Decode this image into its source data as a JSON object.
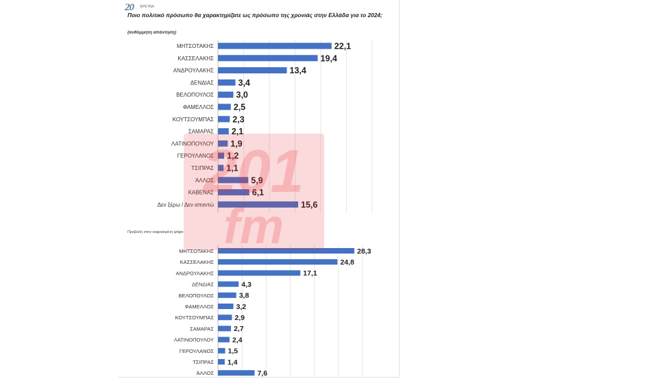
{
  "header": {
    "logo_text": "20",
    "logo_sub": "ΈΡΕΥΝΑ"
  },
  "question": "Ποιο πολιτικό πρόσωπο θα χαρακτηρίζατε ως πρόσωπο της χρονιάς στην Ελλάδα για το 2024;",
  "note": "(ανθόμμητη απάντηση)",
  "watermark": {
    "text_top": "201",
    "text_bottom": "fm",
    "color": "#e8323c"
  },
  "colors": {
    "bar": "#4472c4"
  },
  "chart_data": [
    {
      "type": "bar",
      "orientation": "horizontal",
      "title": "",
      "categories": [
        "ΜΗΤΣΟΤΑΚΗΣ",
        "ΚΑΣΣΕΛΑΚΗΣ",
        "ΑΝΔΡΟΥΛΑΚΗΣ",
        "ΔΕΝΔΙΑΣ",
        "ΒΕΛΟΠΟΥΛΟΣ",
        "ΦΑΜΕΛΛΟΣ",
        "ΚΟΥΤΣΟΥΜΠΑΣ",
        "ΣΑΜΑΡΑΣ",
        "ΛΑΤΙΝΟΠΟΥΛΟΥ",
        "ΓΕΡΟΥΛΑΝΟΣ",
        "ΤΣΙΠΡΑΣ",
        "ΆΛΛΟΣ",
        "ΚΑΒΕΝΑΣ",
        "Δεν ξέρω / Δεν απαντώ"
      ],
      "values": [
        22.1,
        19.4,
        13.4,
        3.4,
        3.0,
        2.5,
        2.3,
        2.1,
        1.9,
        1.2,
        1.1,
        5.9,
        6.1,
        15.6
      ],
      "labels": [
        "22,1",
        "19,4",
        "13,4",
        "3,4",
        "3,0",
        "2,5",
        "2,3",
        "2,1",
        "1,9",
        "1,2",
        "1,1",
        "5,9",
        "6,1",
        "15,6"
      ],
      "xlim": [
        0,
        30
      ],
      "grid": true
    },
    {
      "type": "bar",
      "orientation": "horizontal",
      "title": "Προβολή στην εκφρασμένη ψήφο",
      "categories": [
        "ΜΗΤΣΟΤΑΚΗΣ",
        "ΚΑΣΣΕΛΑΚΗΣ",
        "ΑΝΔΡΟΥΛΑΚΗΣ",
        "ΔΕΝΔΙΑΣ",
        "ΒΕΛΟΠΟΥΛΟΣ",
        "ΦΑΜΕΛΛΟΣ",
        "ΚΟΥΤΣΟΥΜΠΑΣ",
        "ΣΑΜΑΡΑΣ",
        "ΛΑΤΙΝΟΠΟΥΛΟΥ",
        "ΓΕΡΟΥΛΑΝΟΣ",
        "ΤΣΙΠΡΑΣ",
        "ΆΛΛΟΣ"
      ],
      "values": [
        28.3,
        24.8,
        17.1,
        4.3,
        3.8,
        3.2,
        2.9,
        2.7,
        2.4,
        1.5,
        1.4,
        7.6
      ],
      "labels": [
        "28,3",
        "24,8",
        "17,1",
        "4,3",
        "3,8",
        "3,2",
        "2,9",
        "2,7",
        "2,4",
        "1,5",
        "1,4",
        "7,6"
      ],
      "xlim": [
        0,
        32
      ],
      "grid": true
    }
  ]
}
